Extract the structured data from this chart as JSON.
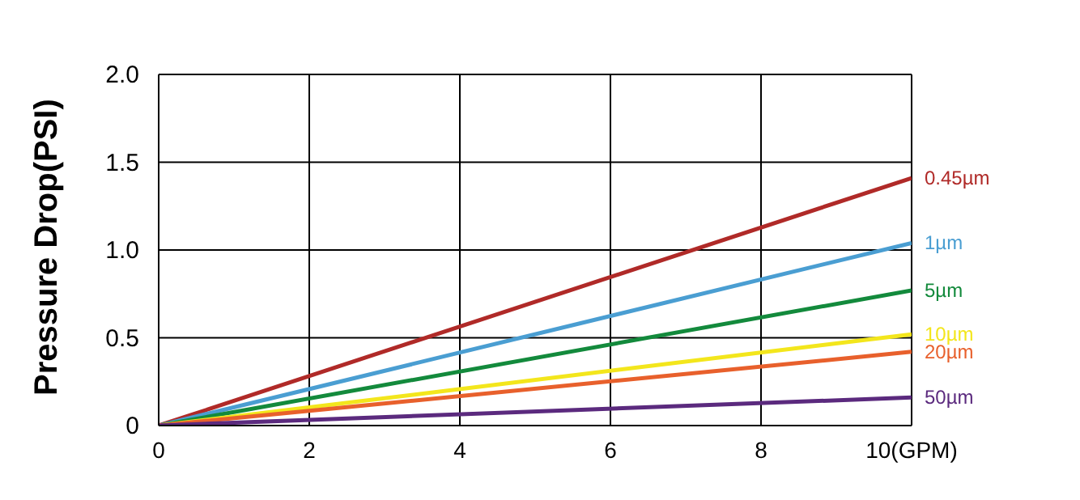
{
  "chart_data": {
    "type": "line",
    "ylabel": "Pressure Drop(PSI)",
    "x": [
      0,
      10
    ],
    "xlim": [
      0,
      10
    ],
    "xticks": [
      0,
      2,
      4,
      6,
      8,
      {
        "value": 10,
        "label": "10(GPM)"
      }
    ],
    "ylim": [
      0,
      2
    ],
    "yticks": [
      0,
      0.5,
      {
        "value": 1,
        "label": "1.0"
      },
      1.5,
      {
        "value": 2,
        "label": "2.0"
      }
    ],
    "grid": true,
    "legend": false,
    "marker": "none",
    "line_style": "solid",
    "series": [
      {
        "name": "0.45µm",
        "color": "#b02a28",
        "values": [
          0,
          1.41
        ]
      },
      {
        "name": "1µm",
        "color": "#4a9ed2",
        "values": [
          0,
          1.04
        ]
      },
      {
        "name": "5µm",
        "color": "#138a3c",
        "values": [
          0,
          0.77
        ]
      },
      {
        "name": "10µm",
        "color": "#f3e61c",
        "values": [
          0,
          0.52
        ]
      },
      {
        "name": "20µm",
        "color": "#e8602c",
        "values": [
          0,
          0.42
        ]
      },
      {
        "name": "50µm",
        "color": "#5b2a7e",
        "values": [
          0,
          0.16
        ]
      }
    ]
  }
}
